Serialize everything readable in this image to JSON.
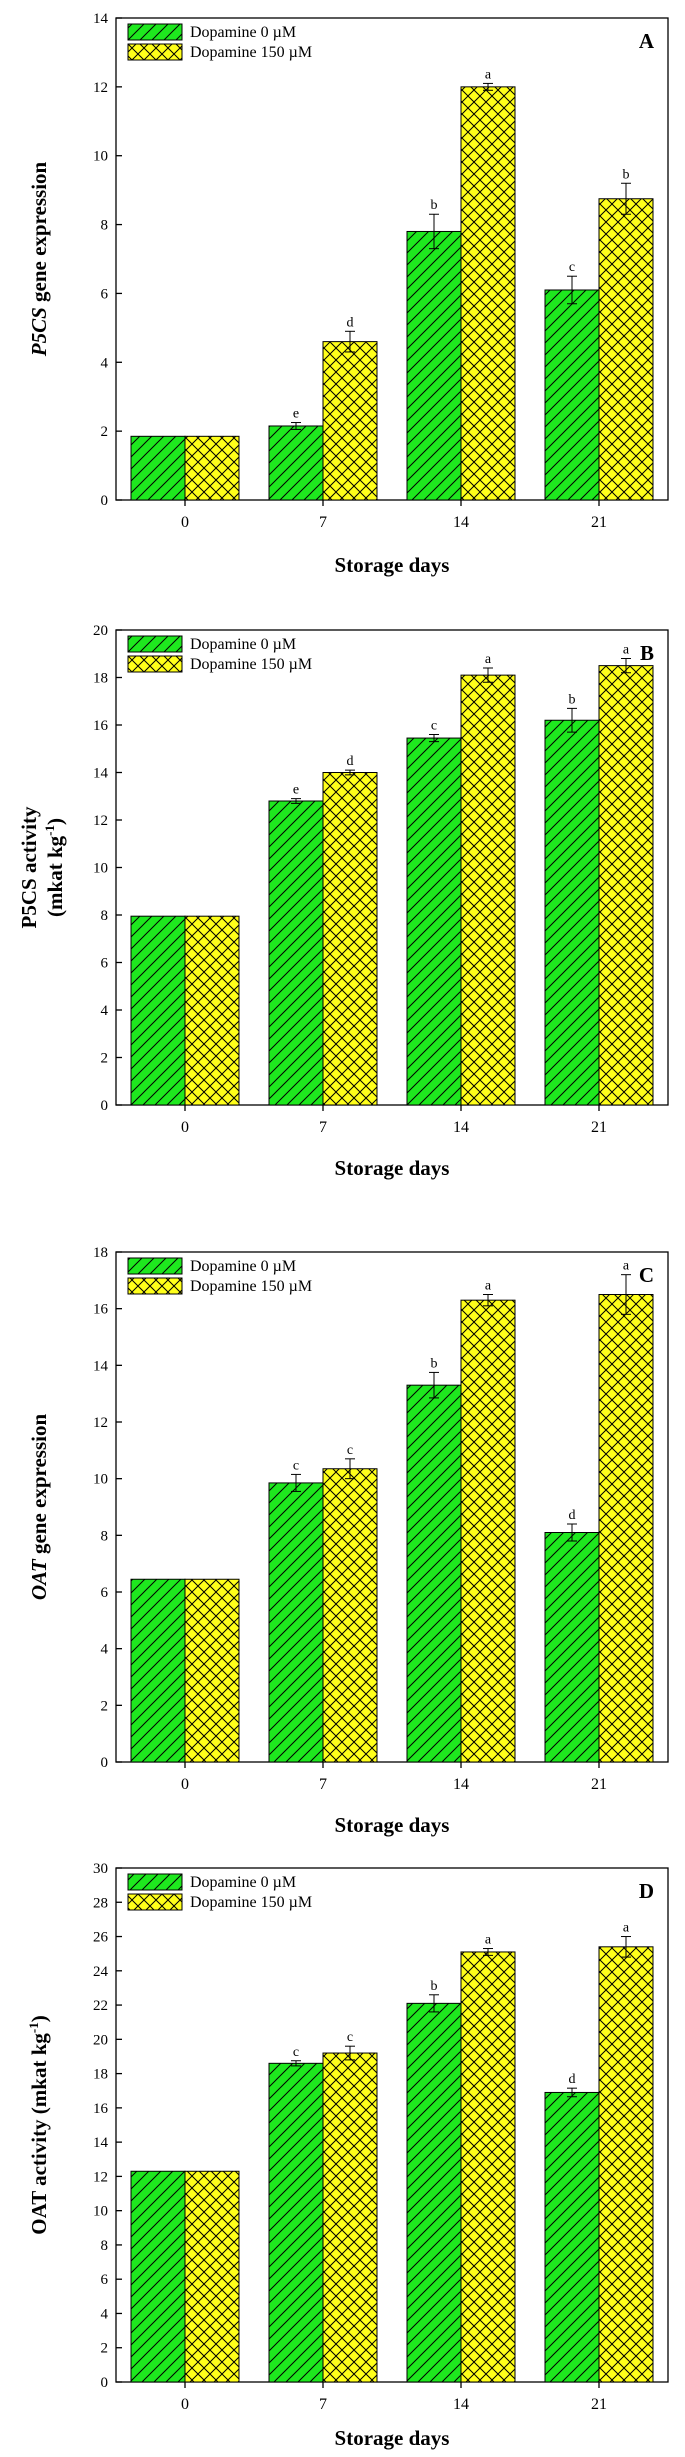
{
  "colors": {
    "series0_fill": "#1ee81e",
    "series1_fill": "#ffff1a",
    "hatch_stroke": "#000000"
  },
  "legend": {
    "series0": "Dopamine 0 µM",
    "series1": "Dopamine 150 µM"
  },
  "chart_data": [
    {
      "type": "bar",
      "panel": "A",
      "xlabel": "Storage days",
      "ylabel_italic": "P5CS",
      "ylabel_rest": " gene expression",
      "ylabel_line1": "",
      "ylabel_line2_pre": "",
      "ylabel_sup": "",
      "ylabel_line2_post": "",
      "ylim": [
        0,
        14
      ],
      "yticks": [
        0,
        2,
        4,
        6,
        8,
        10,
        12,
        14
      ],
      "categories": [
        "0",
        "7",
        "14",
        "21"
      ],
      "series": [
        {
          "name": "Dopamine 0 µM",
          "values": [
            1.85,
            2.15,
            7.8,
            6.1
          ],
          "errors": [
            0,
            0.1,
            0.5,
            0.4
          ],
          "labels": [
            "",
            "e",
            "b",
            "c"
          ]
        },
        {
          "name": "Dopamine 150 µM",
          "values": [
            1.85,
            4.6,
            12.0,
            8.75
          ],
          "errors": [
            0,
            0.3,
            0.1,
            0.45
          ],
          "labels": [
            "",
            "d",
            "a",
            "b"
          ]
        }
      ],
      "legend_position": "top-left"
    },
    {
      "type": "bar",
      "panel": "B",
      "xlabel": "Storage days",
      "ylabel_italic": "",
      "ylabel_rest": "",
      "ylabel_line1": "P5CS activity",
      "ylabel_line2_pre": "(mkat kg",
      "ylabel_sup": "-1",
      "ylabel_line2_post": ")",
      "ylim": [
        0,
        20
      ],
      "yticks": [
        0,
        2,
        4,
        6,
        8,
        10,
        12,
        14,
        16,
        18,
        20
      ],
      "categories": [
        "0",
        "7",
        "14",
        "21"
      ],
      "series": [
        {
          "name": "Dopamine 0 µM",
          "values": [
            7.95,
            12.8,
            15.45,
            16.2
          ],
          "errors": [
            0,
            0.1,
            0.15,
            0.5
          ],
          "labels": [
            "",
            "e",
            "c",
            "b"
          ]
        },
        {
          "name": "Dopamine 150 µM",
          "values": [
            7.95,
            14.0,
            18.1,
            18.5
          ],
          "errors": [
            0,
            0.1,
            0.3,
            0.3
          ],
          "labels": [
            "",
            "d",
            "a",
            "a"
          ]
        }
      ],
      "legend_position": "top-left"
    },
    {
      "type": "bar",
      "panel": "C",
      "xlabel": "Storage days",
      "ylabel_italic": "OAT",
      "ylabel_rest": " gene expression",
      "ylabel_line1": "",
      "ylabel_line2_pre": "",
      "ylabel_sup": "",
      "ylabel_line2_post": "",
      "ylim": [
        0,
        18
      ],
      "yticks": [
        0,
        2,
        4,
        6,
        8,
        10,
        12,
        14,
        16,
        18
      ],
      "categories": [
        "0",
        "7",
        "14",
        "21"
      ],
      "series": [
        {
          "name": "Dopamine 0 µM",
          "values": [
            6.45,
            9.85,
            13.3,
            8.1
          ],
          "errors": [
            0,
            0.3,
            0.45,
            0.3
          ],
          "labels": [
            "",
            "c",
            "b",
            "d"
          ]
        },
        {
          "name": "Dopamine 150 µM",
          "values": [
            6.45,
            10.35,
            16.3,
            16.5
          ],
          "errors": [
            0,
            0.35,
            0.2,
            0.7
          ],
          "labels": [
            "",
            "c",
            "a",
            "a"
          ]
        }
      ],
      "legend_position": "top-left"
    },
    {
      "type": "bar",
      "panel": "D",
      "xlabel": "Storage days",
      "ylabel_italic": "",
      "ylabel_rest": "",
      "ylabel_line1": "",
      "ylabel_line2_pre": "OAT activity (mkat kg",
      "ylabel_sup": "-1",
      "ylabel_line2_post": ")",
      "ylim": [
        0,
        30
      ],
      "yticks": [
        0,
        2,
        4,
        6,
        8,
        10,
        12,
        14,
        16,
        18,
        20,
        22,
        24,
        26,
        28,
        30
      ],
      "categories": [
        "0",
        "7",
        "14",
        "21"
      ],
      "series": [
        {
          "name": "Dopamine 0 µM",
          "values": [
            12.3,
            18.6,
            22.1,
            16.9
          ],
          "errors": [
            0,
            0.15,
            0.5,
            0.25
          ],
          "labels": [
            "",
            "c",
            "b",
            "d"
          ]
        },
        {
          "name": "Dopamine 150 µM",
          "values": [
            12.3,
            19.2,
            25.1,
            25.4
          ],
          "errors": [
            0,
            0.4,
            0.2,
            0.6
          ],
          "labels": [
            "",
            "c",
            "a",
            "a"
          ]
        }
      ],
      "legend_position": "top-left"
    }
  ]
}
